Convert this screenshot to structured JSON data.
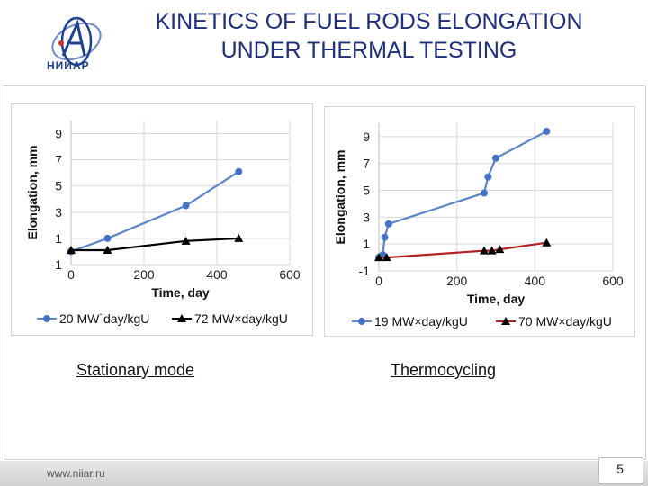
{
  "header": {
    "title_line1": "KINETICS OF FUEL RODS ELONGATION",
    "title_line2": "UNDER THERMAL TESTING",
    "logo_text": "НИИАР"
  },
  "captions": {
    "left": "Stationary mode",
    "right": "Thermocycling"
  },
  "footer": {
    "url": "www.niiar.ru",
    "page_number": "5"
  },
  "colors": {
    "title": "#1f2f7a",
    "series_blue": "#5b85c6",
    "marker_blue": "#4472c4",
    "series_black": "#000000",
    "series_red": "#b22222"
  },
  "chart_data": [
    {
      "type": "line",
      "title": "",
      "xlabel": "Time, day",
      "ylabel": "Elongation, mm",
      "xlim": [
        0,
        600
      ],
      "ylim": [
        -1,
        10
      ],
      "xticks": [
        "0",
        "200",
        "400",
        "600"
      ],
      "yticks": [
        "-1",
        "1",
        "3",
        "5",
        "7",
        "9"
      ],
      "series": [
        {
          "name": "20 MW˙day/kgU",
          "marker": "circle",
          "points": [
            [
              0,
              0
            ],
            [
              100,
              1
            ],
            [
              315,
              3.5
            ],
            [
              460,
              6.1
            ]
          ]
        },
        {
          "name": "72 MW×day/kgU",
          "marker": "triangle",
          "points": [
            [
              0,
              0.1
            ],
            [
              100,
              0.1
            ],
            [
              315,
              0.8
            ],
            [
              460,
              1
            ]
          ]
        }
      ],
      "legend": [
        "20 MW˙day/kgU",
        "72 MW×day/kgU"
      ]
    },
    {
      "type": "line",
      "title": "",
      "xlabel": "Time, day",
      "ylabel": "Elongation, mm",
      "xlim": [
        0,
        600
      ],
      "ylim": [
        -1,
        10
      ],
      "xticks": [
        "0",
        "200",
        "400",
        "600"
      ],
      "yticks": [
        "-1",
        "1",
        "3",
        "5",
        "7",
        "9"
      ],
      "series": [
        {
          "name": "19 MW×day/kgU",
          "marker": "circle",
          "points": [
            [
              0,
              0
            ],
            [
              10,
              0.2
            ],
            [
              15,
              1.5
            ],
            [
              25,
              2.5
            ],
            [
              270,
              4.8
            ],
            [
              280,
              6
            ],
            [
              300,
              7.4
            ],
            [
              430,
              9.4
            ]
          ]
        },
        {
          "name": "70 MW×day/kgU",
          "marker": "triangle",
          "points": [
            [
              0,
              0
            ],
            [
              20,
              0
            ],
            [
              270,
              0.5
            ],
            [
              290,
              0.5
            ],
            [
              310,
              0.6
            ],
            [
              430,
              1.1
            ]
          ]
        }
      ],
      "legend": [
        "19 MW×day/kgU",
        "70 MW×day/kgU"
      ]
    }
  ]
}
